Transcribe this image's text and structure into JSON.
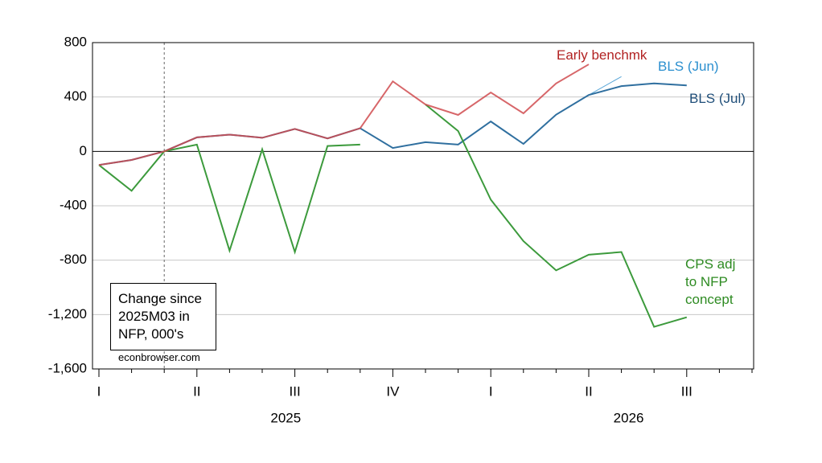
{
  "chart_data": {
    "type": "line",
    "categories": [
      "I",
      null,
      null,
      "II",
      null,
      null,
      "III",
      null,
      null,
      "IV",
      null,
      null,
      "I",
      null,
      null,
      "II",
      null,
      null,
      "III",
      null,
      null
    ],
    "years": [
      "2025",
      "2026"
    ],
    "ylim": [
      -1600,
      800
    ],
    "yticks": [
      {
        "value": -1600,
        "label": "-1,600"
      },
      {
        "value": -1200,
        "label": "-1,200"
      },
      -800,
      -400,
      0,
      400,
      800
    ],
    "grid": true,
    "reference_x": 2,
    "annotation": "Change since 2025M03 in NFP, 000's",
    "source": "econbrowser.com",
    "series": [
      {
        "name": "BLS (Jun)",
        "color": "#5aa7d8",
        "label_color": "#2b8fcf",
        "values": [
          -100,
          -63,
          0,
          103,
          123,
          100,
          165,
          95,
          170,
          25,
          68,
          50,
          220,
          55,
          270,
          415,
          550,
          null,
          null,
          null,
          null
        ]
      },
      {
        "name": "BLS (Jul)",
        "color": "#2f6f9f",
        "label_color": "#1f4e79",
        "values": [
          -100,
          -63,
          0,
          103,
          123,
          100,
          165,
          95,
          170,
          25,
          68,
          50,
          220,
          55,
          270,
          415,
          480,
          500,
          485,
          null,
          null
        ]
      },
      {
        "name": "CPS adj to NFP concept",
        "color": "#3c9a3c",
        "label_color": "#2e8b22",
        "values": [
          -100,
          -290,
          0,
          50,
          -730,
          15,
          -740,
          40,
          50,
          null,
          345,
          150,
          -355,
          -660,
          -875,
          -760,
          -740,
          -1290,
          -1220,
          null,
          null
        ]
      },
      {
        "name": "Early benchmk",
        "color": "#d04b4f",
        "label_color": "#b22222",
        "values": [
          -100,
          -63,
          0,
          103,
          123,
          100,
          165,
          95,
          170,
          515,
          345,
          268,
          433,
          280,
          500,
          640,
          null,
          null,
          null,
          null,
          null
        ]
      }
    ]
  }
}
